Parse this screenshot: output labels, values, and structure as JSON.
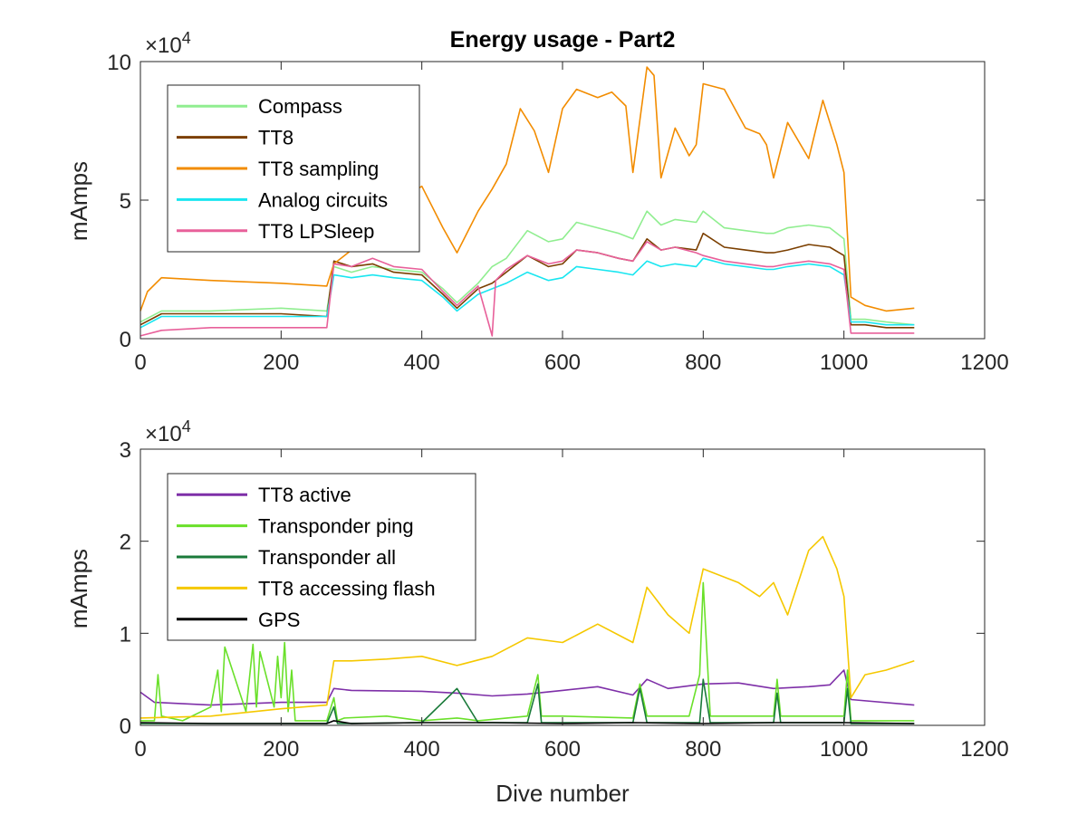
{
  "chart_data": [
    {
      "type": "line",
      "title": "Energy usage - Part2",
      "xlabel": "",
      "ylabel": "mAmps",
      "exponent_label": "×10",
      "exponent_power": "4",
      "xlim": [
        0,
        1200
      ],
      "ylim": [
        0,
        10
      ],
      "y_scale_factor": 10000,
      "xticks": [
        "0",
        "200",
        "400",
        "600",
        "800",
        "1000",
        "1200"
      ],
      "yticks": [
        "0",
        "5",
        "10"
      ],
      "legend_position": "top-left",
      "series": [
        {
          "name": "Compass",
          "color": "#90ee90",
          "x": [
            0,
            30,
            100,
            200,
            265,
            275,
            300,
            330,
            360,
            400,
            430,
            450,
            480,
            500,
            520,
            550,
            580,
            600,
            620,
            650,
            680,
            700,
            720,
            740,
            760,
            790,
            800,
            830,
            860,
            890,
            900,
            920,
            950,
            980,
            1000,
            1010,
            1030,
            1060,
            1100
          ],
          "values": [
            0.6,
            1.0,
            1.0,
            1.1,
            1.0,
            2.6,
            2.4,
            2.6,
            2.5,
            2.4,
            1.8,
            1.3,
            2.0,
            2.6,
            2.9,
            3.9,
            3.5,
            3.6,
            4.2,
            4.0,
            3.8,
            3.6,
            4.6,
            4.1,
            4.3,
            4.2,
            4.6,
            4.0,
            3.9,
            3.8,
            3.8,
            4.0,
            4.1,
            4.0,
            3.6,
            0.7,
            0.7,
            0.6,
            0.5
          ]
        },
        {
          "name": "TT8",
          "color": "#7b3f00",
          "x": [
            0,
            30,
            100,
            200,
            265,
            275,
            300,
            330,
            360,
            400,
            430,
            450,
            480,
            500,
            520,
            550,
            580,
            600,
            620,
            650,
            680,
            700,
            720,
            740,
            760,
            790,
            800,
            830,
            860,
            890,
            900,
            920,
            950,
            980,
            1000,
            1010,
            1030,
            1060,
            1100
          ],
          "values": [
            0.5,
            0.9,
            0.9,
            0.9,
            0.8,
            2.8,
            2.6,
            2.7,
            2.4,
            2.3,
            1.6,
            1.1,
            1.8,
            2.0,
            2.4,
            3.0,
            2.6,
            2.7,
            3.2,
            3.1,
            2.9,
            2.8,
            3.6,
            3.2,
            3.3,
            3.2,
            3.8,
            3.3,
            3.2,
            3.1,
            3.1,
            3.2,
            3.4,
            3.3,
            3.0,
            0.5,
            0.5,
            0.4,
            0.4
          ]
        },
        {
          "name": "TT8 sampling",
          "color": "#f28c00",
          "x": [
            0,
            10,
            30,
            100,
            200,
            265,
            275,
            300,
            330,
            360,
            380,
            400,
            430,
            450,
            480,
            500,
            520,
            540,
            560,
            580,
            600,
            620,
            650,
            670,
            690,
            700,
            720,
            730,
            740,
            760,
            780,
            790,
            800,
            830,
            860,
            880,
            890,
            900,
            920,
            950,
            970,
            990,
            1000,
            1010,
            1030,
            1060,
            1100
          ],
          "values": [
            1.0,
            1.7,
            2.2,
            2.1,
            2.0,
            1.9,
            2.7,
            3.2,
            3.6,
            4.4,
            5.2,
            5.5,
            4.0,
            3.1,
            4.6,
            5.4,
            6.3,
            8.3,
            7.5,
            6.0,
            8.3,
            9.0,
            8.7,
            8.9,
            8.4,
            6.0,
            9.8,
            9.5,
            5.8,
            7.6,
            6.6,
            7.0,
            9.2,
            9.0,
            7.6,
            7.4,
            7.0,
            5.8,
            7.8,
            6.5,
            8.6,
            7.0,
            6.0,
            1.5,
            1.2,
            1.0,
            1.1
          ]
        },
        {
          "name": "Analog circuits",
          "color": "#19e6f0",
          "x": [
            0,
            30,
            100,
            200,
            265,
            275,
            300,
            330,
            360,
            400,
            430,
            450,
            480,
            500,
            520,
            550,
            580,
            600,
            620,
            650,
            680,
            700,
            720,
            740,
            760,
            790,
            800,
            830,
            860,
            890,
            900,
            920,
            950,
            980,
            1000,
            1010,
            1030,
            1060,
            1100
          ],
          "values": [
            0.4,
            0.8,
            0.8,
            0.8,
            0.8,
            2.3,
            2.2,
            2.3,
            2.2,
            2.1,
            1.5,
            1.0,
            1.6,
            1.8,
            2.0,
            2.4,
            2.1,
            2.2,
            2.6,
            2.5,
            2.4,
            2.3,
            2.8,
            2.6,
            2.7,
            2.6,
            2.9,
            2.7,
            2.6,
            2.5,
            2.5,
            2.6,
            2.7,
            2.6,
            2.3,
            0.6,
            0.6,
            0.5,
            0.5
          ]
        },
        {
          "name": "TT8 LPSleep",
          "color": "#e8609a",
          "x": [
            0,
            30,
            100,
            200,
            265,
            275,
            300,
            330,
            360,
            400,
            430,
            450,
            480,
            500,
            505,
            520,
            550,
            580,
            600,
            620,
            650,
            680,
            700,
            720,
            740,
            760,
            790,
            800,
            830,
            860,
            890,
            900,
            920,
            950,
            980,
            1000,
            1010,
            1030,
            1060,
            1100
          ],
          "values": [
            0.1,
            0.3,
            0.4,
            0.4,
            0.4,
            2.7,
            2.6,
            2.9,
            2.6,
            2.5,
            1.7,
            1.2,
            1.9,
            0.1,
            2.1,
            2.5,
            3.0,
            2.7,
            2.8,
            3.2,
            3.1,
            2.9,
            2.8,
            3.5,
            3.2,
            3.3,
            3.1,
            3.0,
            2.8,
            2.7,
            2.6,
            2.6,
            2.7,
            2.8,
            2.7,
            2.5,
            0.2,
            0.2,
            0.2,
            0.2
          ]
        }
      ]
    },
    {
      "type": "line",
      "title": "",
      "xlabel": "Dive number",
      "ylabel": "mAmps",
      "exponent_label": "×10",
      "exponent_power": "4",
      "xlim": [
        0,
        1200
      ],
      "ylim": [
        0,
        3
      ],
      "y_scale_factor": 10000,
      "xticks": [
        "0",
        "200",
        "400",
        "600",
        "800",
        "1000",
        "1200"
      ],
      "yticks": [
        "0",
        "1",
        "2",
        "3"
      ],
      "legend_position": "top-left",
      "series": [
        {
          "name": "TT8 active",
          "color": "#7e2fa8",
          "x": [
            0,
            20,
            100,
            200,
            265,
            275,
            300,
            400,
            450,
            500,
            550,
            600,
            650,
            700,
            720,
            750,
            800,
            850,
            900,
            950,
            980,
            1000,
            1010,
            1100
          ],
          "values": [
            0.36,
            0.25,
            0.22,
            0.25,
            0.25,
            0.4,
            0.38,
            0.37,
            0.35,
            0.32,
            0.34,
            0.38,
            0.42,
            0.33,
            0.5,
            0.4,
            0.45,
            0.46,
            0.4,
            0.42,
            0.44,
            0.6,
            0.28,
            0.22
          ]
        },
        {
          "name": "Transponder ping",
          "color": "#6ae02a",
          "x": [
            0,
            20,
            25,
            30,
            60,
            100,
            110,
            115,
            120,
            150,
            160,
            165,
            170,
            190,
            195,
            200,
            205,
            210,
            215,
            220,
            265,
            275,
            280,
            290,
            350,
            400,
            450,
            480,
            550,
            565,
            570,
            600,
            700,
            710,
            720,
            780,
            795,
            800,
            810,
            850,
            900,
            905,
            910,
            960,
            1000,
            1005,
            1010,
            1100
          ],
          "values": [
            0.05,
            0.05,
            0.55,
            0.1,
            0.05,
            0.2,
            0.6,
            0.15,
            0.85,
            0.15,
            0.88,
            0.2,
            0.8,
            0.2,
            0.75,
            0.3,
            0.9,
            0.15,
            0.6,
            0.05,
            0.05,
            0.3,
            0.05,
            0.08,
            0.1,
            0.05,
            0.08,
            0.05,
            0.1,
            0.55,
            0.1,
            0.1,
            0.08,
            0.45,
            0.1,
            0.1,
            0.55,
            1.55,
            0.1,
            0.1,
            0.1,
            0.5,
            0.1,
            0.1,
            0.1,
            0.6,
            0.05,
            0.05
          ]
        },
        {
          "name": "Transponder all",
          "color": "#1a7a3a",
          "x": [
            0,
            265,
            275,
            280,
            400,
            450,
            480,
            550,
            565,
            570,
            700,
            710,
            720,
            795,
            800,
            810,
            900,
            905,
            910,
            1000,
            1005,
            1010,
            1100
          ],
          "values": [
            0.02,
            0.02,
            0.2,
            0.02,
            0.03,
            0.4,
            0.03,
            0.03,
            0.45,
            0.03,
            0.03,
            0.4,
            0.03,
            0.03,
            0.5,
            0.03,
            0.03,
            0.35,
            0.03,
            0.03,
            0.4,
            0.02,
            0.02
          ]
        },
        {
          "name": "TT8 accessing flash",
          "color": "#f5c800",
          "x": [
            0,
            100,
            200,
            265,
            275,
            300,
            350,
            400,
            450,
            500,
            550,
            600,
            650,
            700,
            720,
            750,
            780,
            800,
            850,
            880,
            900,
            920,
            950,
            970,
            990,
            1000,
            1010,
            1030,
            1060,
            1100
          ],
          "values": [
            0.08,
            0.1,
            0.18,
            0.22,
            0.7,
            0.7,
            0.72,
            0.75,
            0.65,
            0.75,
            0.95,
            0.9,
            1.1,
            0.9,
            1.5,
            1.2,
            1.0,
            1.7,
            1.55,
            1.4,
            1.55,
            1.2,
            1.9,
            2.05,
            1.7,
            1.4,
            0.3,
            0.55,
            0.6,
            0.7
          ]
        },
        {
          "name": "GPS",
          "color": "#000000",
          "x": [
            0,
            100,
            200,
            265,
            275,
            300,
            400,
            500,
            600,
            700,
            800,
            900,
            1000,
            1100
          ],
          "values": [
            0.03,
            0.02,
            0.02,
            0.02,
            0.05,
            0.02,
            0.03,
            0.03,
            0.02,
            0.03,
            0.02,
            0.03,
            0.03,
            0.02
          ]
        }
      ]
    }
  ]
}
